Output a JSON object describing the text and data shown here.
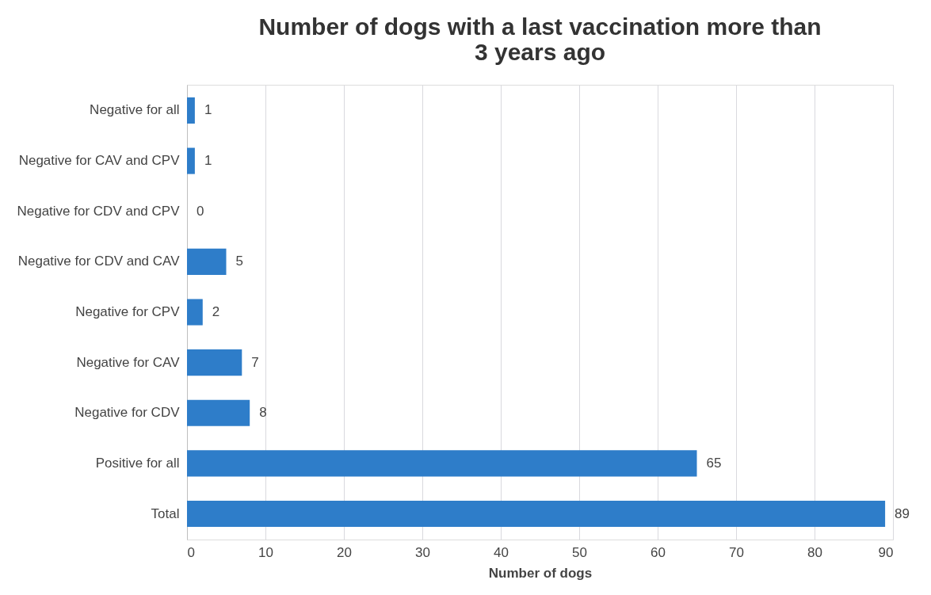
{
  "chart_data": {
    "type": "bar",
    "orientation": "horizontal",
    "title": "Number of dogs with a last vaccination more than 3 years ago",
    "xlabel": "Number of dogs",
    "categories": [
      "Negative for all",
      "Negative for CAV and CPV",
      "Negative for CDV and CPV",
      "Negative for CDV and CAV",
      "Negative for CPV",
      "Negative for CAV",
      "Negative for CDV",
      "Positive for all",
      "Total"
    ],
    "values": [
      1,
      1,
      0,
      5,
      2,
      7,
      8,
      65,
      89
    ],
    "color": "#2e7dc9",
    "xlim": [
      0,
      90
    ],
    "xticks": [
      0,
      10,
      20,
      30,
      40,
      50,
      60,
      70,
      80,
      90
    ],
    "grid": "x",
    "data_labels": true
  }
}
